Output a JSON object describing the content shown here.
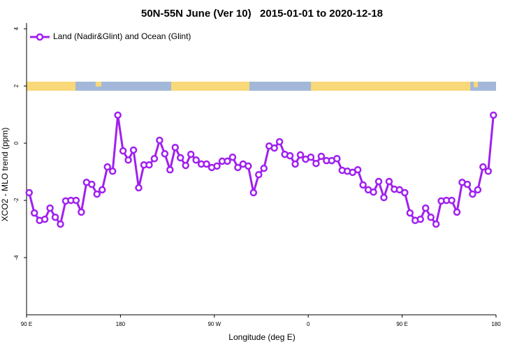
{
  "chart_data": {
    "type": "line",
    "title": "50N-55N June (Ver 10)   2015-01-01 to 2020-12-18",
    "x_label": "Longitude (deg E)",
    "y_label": "XCO2 - MLO trend (ppm)",
    "x": [
      92.5,
      97.5,
      102.5,
      107.5,
      112.5,
      117.5,
      122.5,
      127.5,
      132.5,
      137.5,
      142.5,
      147.5,
      152.5,
      157.5,
      162.5,
      167.5,
      172.5,
      177.5,
      182.5,
      187.5,
      192.5,
      197.5,
      202.5,
      207.5,
      212.5,
      217.5,
      222.5,
      227.5,
      232.5,
      237.5,
      242.5,
      247.5,
      252.5,
      257.5,
      262.5,
      267.5,
      272.5,
      277.5,
      282.5,
      287.5,
      292.5,
      297.5,
      302.5,
      307.5,
      312.5,
      317.5,
      322.5,
      327.5,
      332.5,
      337.5,
      342.5,
      347.5,
      352.5,
      357.5,
      362.5,
      367.5,
      372.5,
      377.5,
      382.5,
      387.5,
      392.5,
      397.5,
      402.5,
      407.5,
      412.5,
      417.5,
      422.5,
      427.5,
      432.5,
      437.5,
      442.5,
      447.5,
      452.5,
      457.5,
      462.5,
      467.5,
      472.5,
      477.5,
      482.5,
      487.5,
      492.5,
      497.5,
      502.5,
      507.5,
      512.5,
      517.5,
      522.5,
      527.5,
      532.5,
      537.5
    ],
    "series": [
      {
        "name": "Land (Nadir&Glint) and Ocean (Glint)",
        "color": "#a020f0",
        "values": [
          -1.73,
          -2.44,
          -2.7,
          -2.66,
          -2.27,
          -2.59,
          -2.83,
          -2.02,
          -2.0,
          -2.0,
          -2.41,
          -1.37,
          -1.44,
          -1.78,
          -1.63,
          -0.83,
          -0.98,
          0.98,
          -0.27,
          -0.59,
          -0.24,
          -1.56,
          -0.76,
          -0.76,
          -0.54,
          0.1,
          -0.37,
          -0.93,
          -0.15,
          -0.51,
          -0.78,
          -0.39,
          -0.59,
          -0.73,
          -0.73,
          -0.85,
          -0.8,
          -0.63,
          -0.63,
          -0.49,
          -0.85,
          -0.73,
          -0.8,
          -1.73,
          -1.1,
          -0.88,
          -0.1,
          -0.17,
          0.05,
          -0.39,
          -0.44,
          -0.73,
          -0.41,
          -0.56,
          -0.49,
          -0.71,
          -0.46,
          -0.61,
          -0.61,
          -0.54,
          -0.95,
          -0.98,
          -1.02,
          -0.93,
          -1.46,
          -1.63,
          -1.71,
          -1.34,
          -1.9,
          -1.34,
          -1.61,
          -1.63,
          -1.73,
          -2.44,
          -2.7,
          -2.66,
          -2.27,
          -2.59,
          -2.83,
          -2.02,
          -2.0,
          -2.0,
          -2.41,
          -1.37,
          -1.44,
          -1.78,
          -1.63,
          -0.83,
          -0.98,
          0.98
        ]
      }
    ],
    "xlim": [
      90,
      540
    ],
    "xticks": [
      {
        "value": 90,
        "label": "90 E"
      },
      180,
      {
        "value": 270,
        "label": "90 W"
      },
      {
        "value": 360,
        "label": "0"
      },
      {
        "value": 450,
        "label": "90 E"
      },
      {
        "value": 540,
        "label": "180"
      }
    ],
    "ylim": [
      -6,
      4.2
    ],
    "yticks": [
      -4,
      -2,
      0,
      2,
      4
    ],
    "legend": "top-left"
  }
}
